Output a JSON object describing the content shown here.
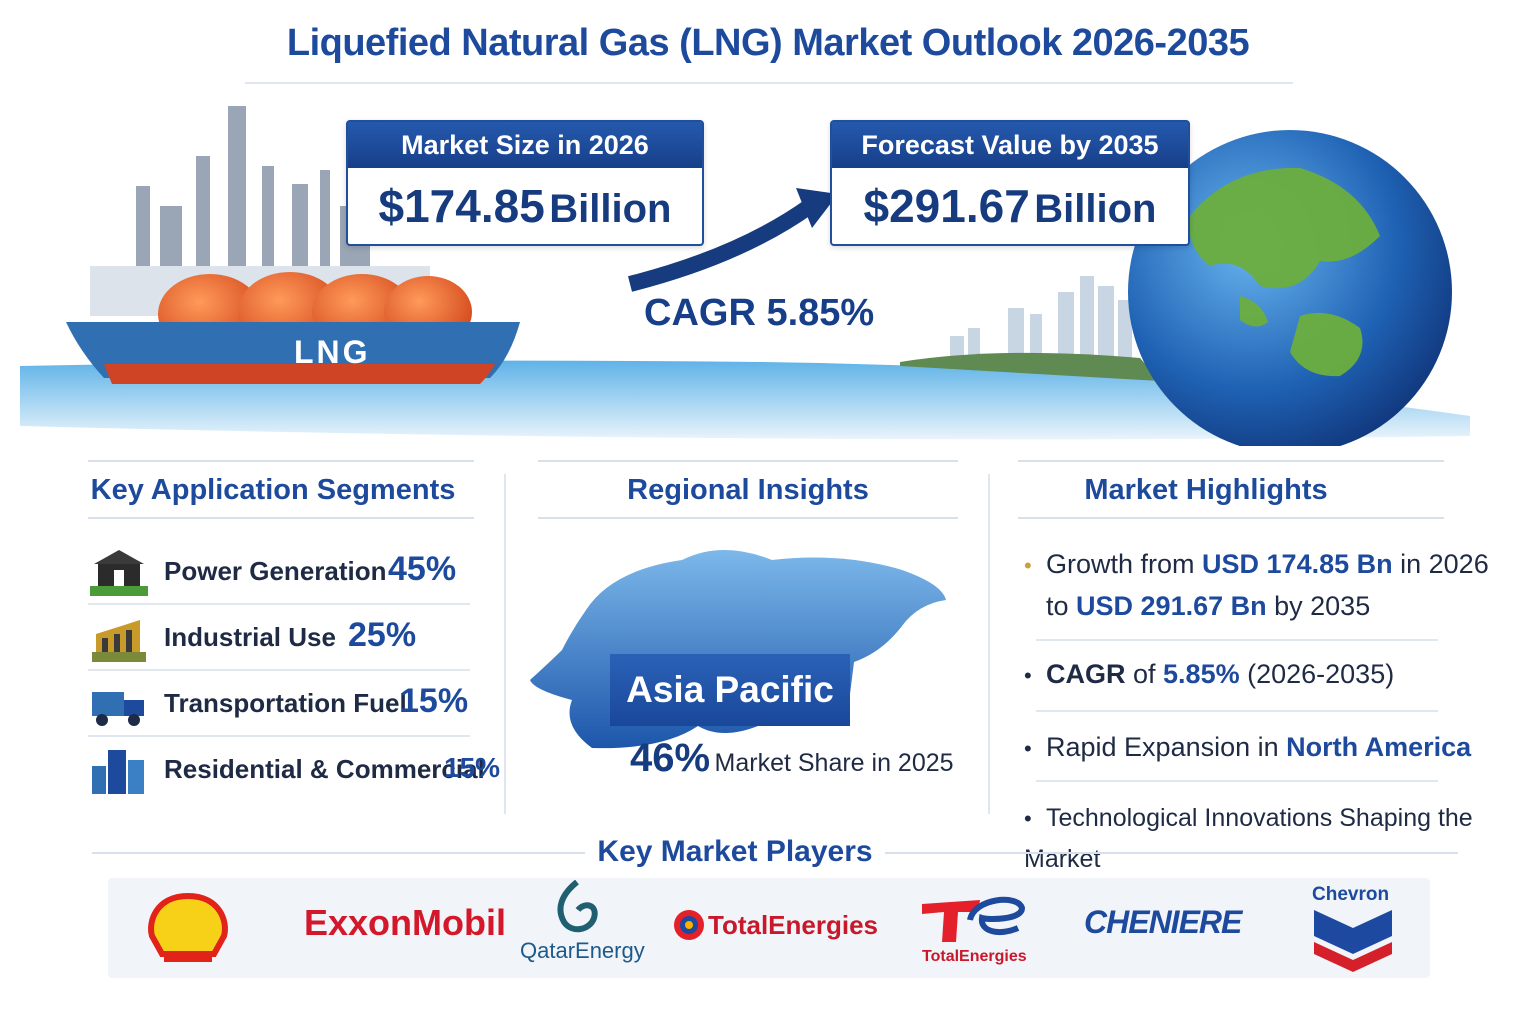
{
  "title": "Liquefied Natural Gas (LNG) Market Outlook 2026-2035",
  "hero": {
    "ship_label": "LNG",
    "market_size": {
      "label": "Market Size in 2026",
      "value": "$174.85",
      "unit": "Billion"
    },
    "forecast": {
      "label": "Forecast Value by 2035",
      "value": "$291.67",
      "unit": "Billion"
    },
    "cagr": "CAGR 5.85%"
  },
  "segments": {
    "title": "Key Application Segments",
    "items": [
      {
        "label": "Power Generation",
        "pct": "45%",
        "icon": "power-plant-icon"
      },
      {
        "label": "Industrial Use",
        "pct": "25%",
        "icon": "factory-icon"
      },
      {
        "label": "Transportation Fuel",
        "pct": "15%",
        "icon": "truck-icon"
      },
      {
        "label": "Residential & Commercial",
        "pct": "15%",
        "icon": "buildings-icon"
      }
    ]
  },
  "regional": {
    "title": "Regional Insights",
    "region": "Asia Pacific",
    "share": "46%",
    "share_text": "Market Share in 2025"
  },
  "highlights": {
    "title": "Market Highlights",
    "h1": {
      "a": "Growth from ",
      "b": "USD 174.85 Bn",
      "c": " in 2026",
      "d": "to ",
      "e": "USD 291.67 Bn",
      "f": " by 2035"
    },
    "h2": {
      "a": "CAGR",
      "b": " of ",
      "c": "5.85%",
      "d": " (2026-2035)"
    },
    "h3": {
      "a": "Rapid Expansion in ",
      "b": "North America"
    },
    "h4": {
      "a": "Technological Innovations Shaping the Market"
    }
  },
  "players": {
    "title": "Key Market Players",
    "logos": {
      "shell": "shell-logo",
      "exxon": "ExxonMobil",
      "qatar": "QatarEnergy",
      "total1": "TotalEnergies",
      "total2": "TotalEnergies",
      "cheniere": "CHENIERE",
      "chevron": "Chevron"
    }
  },
  "colors": {
    "primary": "#1d4a9c",
    "accent_orange": "#e8632a",
    "sea": "#2f8fd4"
  }
}
